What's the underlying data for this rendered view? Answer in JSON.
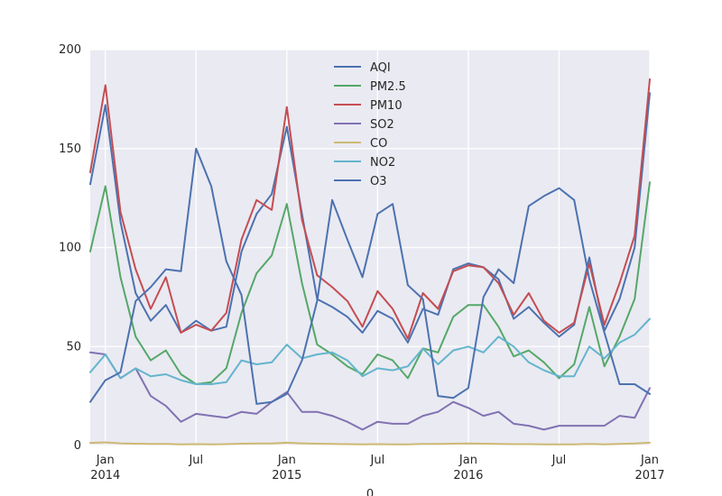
{
  "chart_data": {
    "type": "line",
    "title": "",
    "xlabel": "0",
    "ylabel": "",
    "ylim": [
      0,
      200
    ],
    "grid": true,
    "legend_position": "upper-center",
    "y_ticks": [
      0,
      50,
      100,
      150,
      200
    ],
    "x_tick_labels": [
      {
        "index": 1,
        "label": "Jan",
        "sublabel": "2014"
      },
      {
        "index": 7,
        "label": "Jul",
        "sublabel": ""
      },
      {
        "index": 13,
        "label": "Jan",
        "sublabel": "2015"
      },
      {
        "index": 19,
        "label": "Jul",
        "sublabel": ""
      },
      {
        "index": 25,
        "label": "Jan",
        "sublabel": "2016"
      },
      {
        "index": 31,
        "label": "Jul",
        "sublabel": ""
      },
      {
        "index": 37,
        "label": "Jan",
        "sublabel": "2017"
      }
    ],
    "x": [
      "2013-12",
      "2014-01",
      "2014-02",
      "2014-03",
      "2014-04",
      "2014-05",
      "2014-06",
      "2014-07",
      "2014-08",
      "2014-09",
      "2014-10",
      "2014-11",
      "2014-12",
      "2015-01",
      "2015-02",
      "2015-03",
      "2015-04",
      "2015-05",
      "2015-06",
      "2015-07",
      "2015-08",
      "2015-09",
      "2015-10",
      "2015-11",
      "2015-12",
      "2016-01",
      "2016-02",
      "2016-03",
      "2016-04",
      "2016-05",
      "2016-06",
      "2016-07",
      "2016-08",
      "2016-09",
      "2016-10",
      "2016-11",
      "2016-12",
      "2017-01"
    ],
    "series": [
      {
        "name": "AQI",
        "color": "#4c72b0",
        "values": [
          132,
          172,
          113,
          77,
          63,
          71,
          57,
          63,
          58,
          60,
          98,
          117,
          127,
          161,
          117,
          74,
          70,
          65,
          57,
          68,
          64,
          52,
          69,
          66,
          89,
          92,
          90,
          84,
          64,
          70,
          62,
          55,
          61,
          95,
          58,
          74,
          100,
          178
        ]
      },
      {
        "name": "PM2.5",
        "color": "#55a868",
        "values": [
          98,
          131,
          85,
          55,
          43,
          48,
          36,
          31,
          32,
          39,
          67,
          87,
          96,
          122,
          82,
          51,
          46,
          40,
          36,
          46,
          43,
          34,
          49,
          47,
          65,
          71,
          71,
          60,
          45,
          48,
          42,
          34,
          41,
          70,
          40,
          55,
          74,
          133
        ]
      },
      {
        "name": "PM10",
        "color": "#c44e52",
        "values": [
          138,
          182,
          118,
          89,
          69,
          85,
          57,
          61,
          58,
          67,
          104,
          124,
          119,
          171,
          114,
          86,
          80,
          73,
          60,
          78,
          69,
          54,
          77,
          69,
          88,
          91,
          90,
          82,
          66,
          77,
          63,
          57,
          62,
          92,
          61,
          82,
          106,
          185
        ]
      },
      {
        "name": "SO2",
        "color": "#8172b2",
        "values": [
          47,
          46,
          34,
          39,
          25,
          20,
          12,
          16,
          15,
          14,
          17,
          16,
          22,
          27,
          17,
          17,
          15,
          12,
          8,
          12,
          11,
          11,
          15,
          17,
          22,
          19,
          15,
          17,
          11,
          10,
          8,
          10,
          10,
          10,
          10,
          15,
          14,
          29
        ]
      },
      {
        "name": "CO",
        "color": "#ccb974",
        "values": [
          1.3,
          1.6,
          1.1,
          0.9,
          0.8,
          0.8,
          0.6,
          0.7,
          0.6,
          0.7,
          0.9,
          1.0,
          1.0,
          1.4,
          1.1,
          0.9,
          0.8,
          0.7,
          0.6,
          0.7,
          0.6,
          0.6,
          0.8,
          0.8,
          0.9,
          1.0,
          0.9,
          0.8,
          0.7,
          0.7,
          0.6,
          0.6,
          0.6,
          0.8,
          0.6,
          0.8,
          1.0,
          1.4
        ]
      },
      {
        "name": "NO2",
        "color": "#64b5cd",
        "values": [
          37,
          46,
          34,
          39,
          35,
          36,
          33,
          31,
          31,
          32,
          43,
          41,
          42,
          51,
          44,
          46,
          47,
          43,
          35,
          39,
          38,
          40,
          49,
          41,
          48,
          50,
          47,
          55,
          50,
          42,
          38,
          35,
          35,
          50,
          44,
          52,
          56,
          64
        ]
      },
      {
        "name": "O3",
        "color": "#4c72b0",
        "values": [
          22,
          33,
          37,
          73,
          80,
          89,
          88,
          150,
          131,
          93,
          76,
          21,
          22,
          26,
          43,
          73,
          124,
          104,
          85,
          117,
          122,
          81,
          74,
          25,
          24,
          29,
          75,
          89,
          82,
          121,
          126,
          130,
          124,
          84,
          57,
          31,
          31,
          26
        ]
      }
    ]
  }
}
